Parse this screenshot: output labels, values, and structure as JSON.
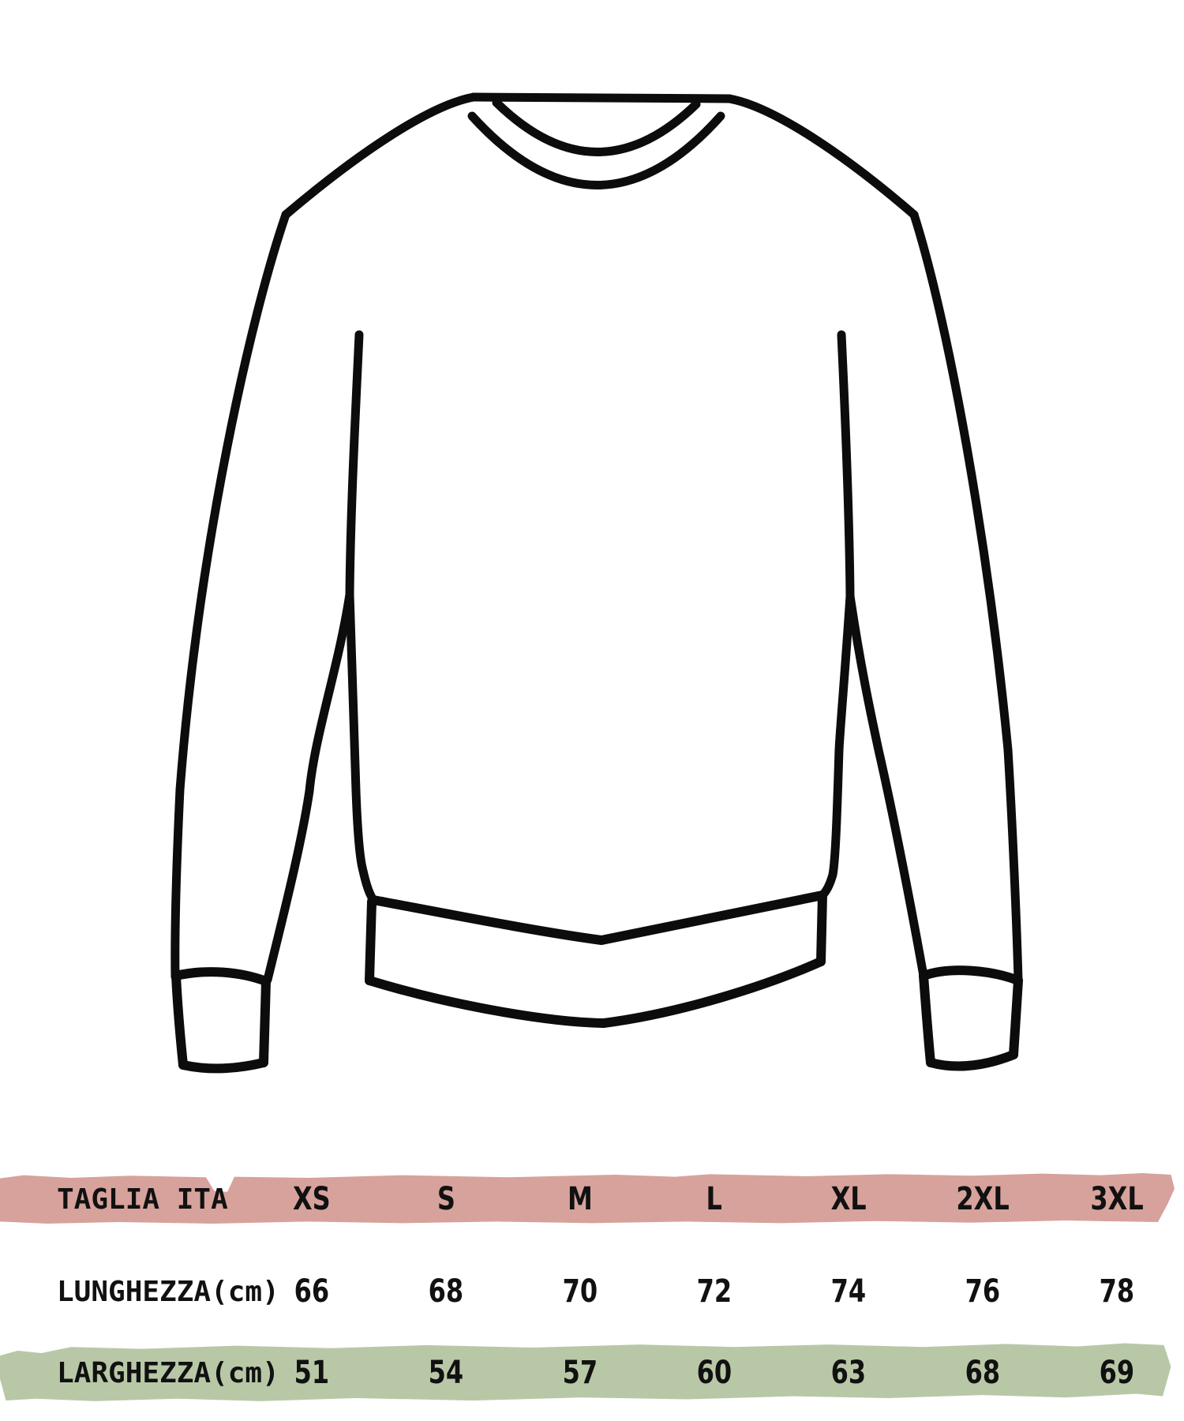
{
  "illustration": {
    "name": "crewneck sweatshirt line drawing",
    "stroke_color": "#0c0c0c"
  },
  "colors": {
    "header_band": "#d7a29c",
    "width_band": "#b8c8a7",
    "ink": "#111111"
  },
  "table": {
    "header": {
      "label": "TAGLIA ITA",
      "sizes": [
        "XS",
        "S",
        "M",
        "L",
        "XL",
        "2XL",
        "3XL"
      ]
    },
    "rows": [
      {
        "label": "LUNGHEZZA(cm)",
        "values": [
          "66",
          "68",
          "70",
          "72",
          "74",
          "76",
          "78"
        ]
      },
      {
        "label": "LARGHEZZA(cm)",
        "values": [
          "51",
          "54",
          "57",
          "60",
          "63",
          "68",
          "69"
        ]
      }
    ]
  },
  "chart_data": {
    "type": "table",
    "title": "",
    "categories": [
      "XS",
      "S",
      "M",
      "L",
      "XL",
      "2XL",
      "3XL"
    ],
    "category_label": "TAGLIA ITA",
    "series": [
      {
        "name": "LUNGHEZZA(cm)",
        "values": [
          66,
          68,
          70,
          72,
          74,
          76,
          78
        ]
      },
      {
        "name": "LARGHEZZA(cm)",
        "values": [
          51,
          54,
          57,
          60,
          63,
          68,
          69
        ]
      }
    ]
  }
}
